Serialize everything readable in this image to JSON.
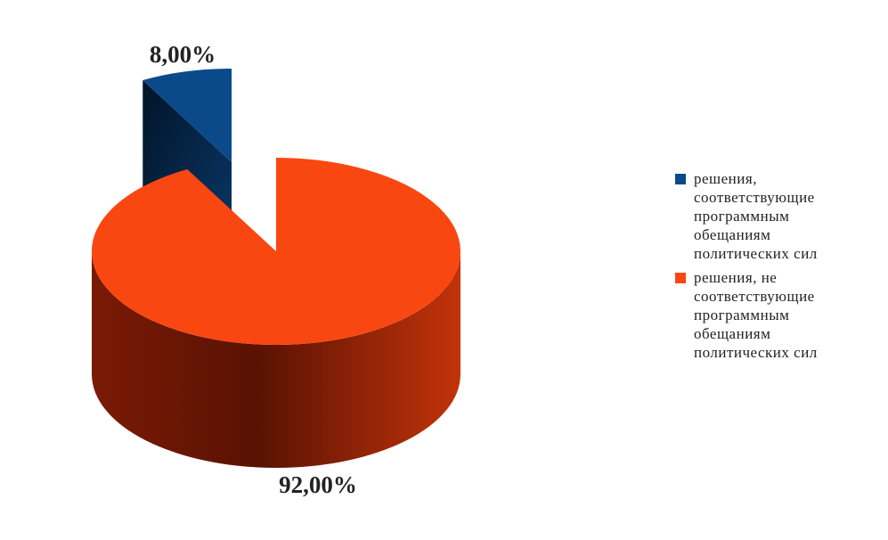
{
  "chart_data": {
    "type": "pie",
    "categories": [
      "решения, соответствующие программным обещаниям политических сил",
      "решения, не соответствующие программным обещаниям политических сил"
    ],
    "values": [
      8,
      92
    ],
    "value_labels": [
      "8,00%",
      "92,00%"
    ],
    "colors": [
      "#0b4a8a",
      "#f94712"
    ]
  }
}
